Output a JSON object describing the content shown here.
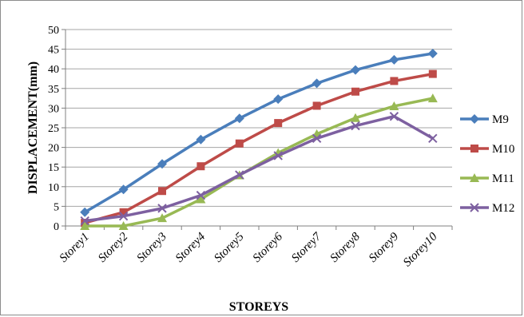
{
  "chart_data": {
    "type": "line",
    "title": "",
    "xlabel": "STOREYS",
    "ylabel": "DISPLACEMENT(mm)",
    "ylim": [
      0,
      50
    ],
    "yticks": [
      0,
      5,
      10,
      15,
      20,
      25,
      30,
      35,
      40,
      45,
      50
    ],
    "grid": true,
    "legend_position": "right",
    "categories": [
      "Storey1",
      "Storey2",
      "Storey3",
      "Storey4",
      "Storey5",
      "Storey6",
      "Storey7",
      "Storey8",
      "Storey9",
      "Storey10"
    ],
    "series": [
      {
        "name": "M9",
        "color": "#4a7ebb",
        "marker": "diamond",
        "values": [
          3.5,
          9.3,
          15.8,
          22.0,
          27.4,
          32.3,
          36.3,
          39.7,
          42.3,
          43.9
        ]
      },
      {
        "name": "M10",
        "color": "#be4b48",
        "marker": "square",
        "values": [
          0.8,
          3.5,
          8.9,
          15.2,
          21.0,
          26.2,
          30.6,
          34.2,
          36.9,
          38.7
        ]
      },
      {
        "name": "M11",
        "color": "#98b954",
        "marker": "triangle",
        "values": [
          0.0,
          0.0,
          2.0,
          6.8,
          12.9,
          18.6,
          23.4,
          27.5,
          30.5,
          32.5
        ]
      },
      {
        "name": "M12",
        "color": "#7d60a0",
        "marker": "x",
        "values": [
          1.3,
          2.5,
          4.5,
          7.8,
          13.0,
          17.9,
          22.3,
          25.5,
          27.9,
          22.3
        ]
      }
    ]
  }
}
